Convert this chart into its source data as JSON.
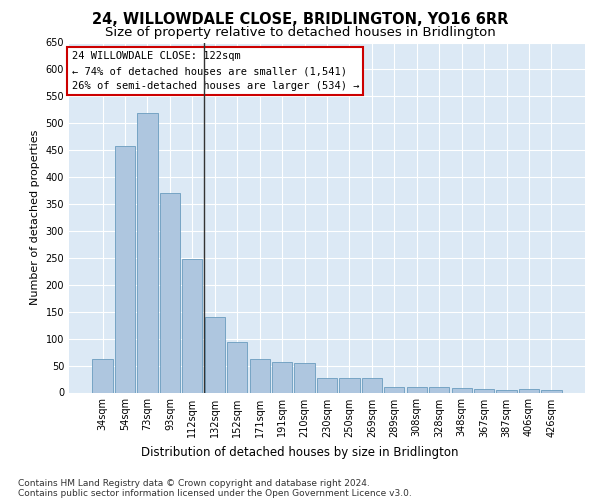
{
  "title": "24, WILLOWDALE CLOSE, BRIDLINGTON, YO16 6RR",
  "subtitle": "Size of property relative to detached houses in Bridlington",
  "xlabel": "Distribution of detached houses by size in Bridlington",
  "ylabel": "Number of detached properties",
  "categories": [
    "34sqm",
    "54sqm",
    "73sqm",
    "93sqm",
    "112sqm",
    "132sqm",
    "152sqm",
    "171sqm",
    "191sqm",
    "210sqm",
    "230sqm",
    "250sqm",
    "269sqm",
    "289sqm",
    "308sqm",
    "328sqm",
    "348sqm",
    "367sqm",
    "387sqm",
    "406sqm",
    "426sqm"
  ],
  "values": [
    63,
    457,
    519,
    370,
    248,
    140,
    93,
    62,
    57,
    55,
    27,
    27,
    27,
    11,
    11,
    11,
    8,
    6,
    5,
    6,
    5
  ],
  "bar_color": "#aec6df",
  "bar_edge_color": "#6a9cbf",
  "background_color": "#dce9f5",
  "grid_color": "#ffffff",
  "property_line_x": 4.5,
  "annotation_text_line1": "24 WILLOWDALE CLOSE: 122sqm",
  "annotation_text_line2": "← 74% of detached houses are smaller (1,541)",
  "annotation_text_line3": "26% of semi-detached houses are larger (534) →",
  "annotation_box_facecolor": "#ffffff",
  "annotation_box_edgecolor": "#cc0000",
  "ylim": [
    0,
    650
  ],
  "yticks": [
    0,
    50,
    100,
    150,
    200,
    250,
    300,
    350,
    400,
    450,
    500,
    550,
    600,
    650
  ],
  "footer_line1": "Contains HM Land Registry data © Crown copyright and database right 2024.",
  "footer_line2": "Contains public sector information licensed under the Open Government Licence v3.0.",
  "title_fontsize": 10.5,
  "subtitle_fontsize": 9.5,
  "xlabel_fontsize": 8.5,
  "ylabel_fontsize": 8,
  "tick_fontsize": 7,
  "annotation_fontsize": 7.5,
  "footer_fontsize": 6.5
}
